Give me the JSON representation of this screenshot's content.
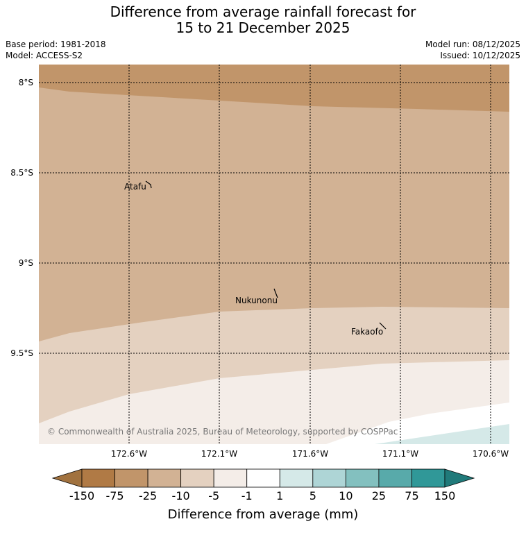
{
  "title_line1": "Difference from average rainfall forecast for",
  "title_line2": "15 to 21 December 2025",
  "base_period": "Base period: 1981-2018",
  "model": "Model: ACCESS-S2",
  "model_run": "Model run: 08/12/2025",
  "issued": "Issued: 10/12/2025",
  "copyright": "© Commonwealth of Australia 2025, Bureau of Meteorology, supported by COSPPac",
  "latitudes": [
    "8°S",
    "8.5°S",
    "9°S",
    "9.5°S"
  ],
  "longitudes": [
    "172.6°W",
    "172.1°W",
    "171.6°W",
    "171.1°W",
    "170.6°W"
  ],
  "places": [
    {
      "name": "Atafu",
      "icon": "island-atafu-icon"
    },
    {
      "name": "Nukunonu",
      "icon": "island-nukunonu-icon"
    },
    {
      "name": "Fakaofo",
      "icon": "island-fakaofo-icon"
    }
  ],
  "colorbar": {
    "title": "Difference from average (mm)",
    "ticks": [
      "-150",
      "-75",
      "-25",
      "-10",
      "-5",
      "-1",
      "1",
      "5",
      "10",
      "25",
      "75",
      "150"
    ],
    "colors": [
      "#a1723f",
      "#b07a45",
      "#c1956a",
      "#d2b294",
      "#e4d1c0",
      "#f4ede8",
      "#ffffff",
      "#d5e9e8",
      "#aed5d6",
      "#83c0bf",
      "#58aaaa",
      "#309898",
      "#207a7a"
    ]
  },
  "map_colors": {
    "band_top": "#c1956a",
    "band_main": "#d2b294",
    "band_light": "#e4d1c0",
    "band_lighter": "#f4ede8",
    "band_white": "#ffffff",
    "band_teal": "#d5e9e8"
  }
}
